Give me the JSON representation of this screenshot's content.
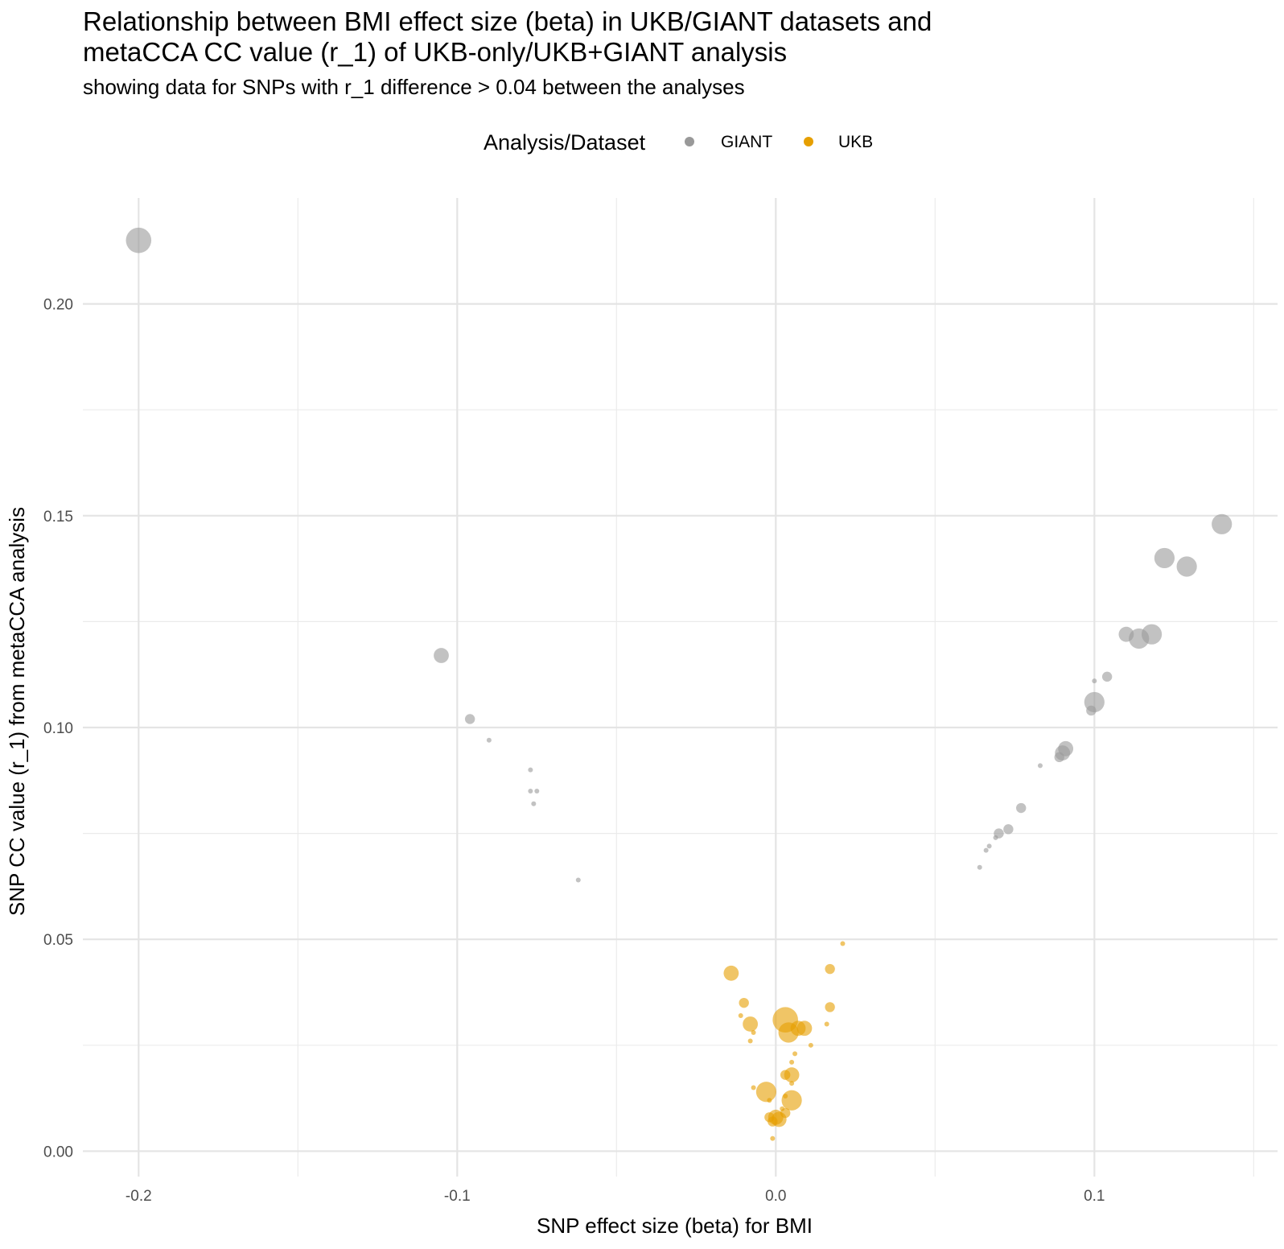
{
  "chart_data": {
    "type": "scatter",
    "title_lines": [
      "Relationship between BMI effect size (beta) in UKB/GIANT datasets and",
      "metaCCA CC value (r_1) of UKB-only/UKB+GIANT analysis"
    ],
    "subtitle": "showing data for SNPs with r_1 difference > 0.04 between the analyses",
    "xlabel": "SNP effect size (beta) for BMI",
    "ylabel": "SNP CC value (r_1) from metaCCA analysis",
    "xlim": [
      -0.2175,
      0.1575
    ],
    "ylim": [
      -0.006,
      0.225
    ],
    "x_ticks": [
      -0.2,
      -0.1,
      0.0,
      0.1
    ],
    "x_tick_labels": [
      "-0.2",
      "-0.1",
      "0.0",
      "0.1"
    ],
    "y_ticks": [
      0.0,
      0.05,
      0.1,
      0.15,
      0.2
    ],
    "y_tick_labels": [
      "0.00",
      "0.05",
      "0.10",
      "0.15",
      "0.20"
    ],
    "x_minor": [
      -0.15,
      -0.05,
      0.05,
      0.15
    ],
    "y_minor": [
      0.025,
      0.075,
      0.125,
      0.175
    ],
    "grid": true,
    "legend_title": "Analysis/Dataset",
    "legend_position": "top",
    "series": [
      {
        "name": "GIANT",
        "color": "#999999",
        "points": [
          {
            "x": -0.2,
            "y": 0.215,
            "s": 5
          },
          {
            "x": -0.105,
            "y": 0.117,
            "s": 3
          },
          {
            "x": -0.096,
            "y": 0.102,
            "s": 2
          },
          {
            "x": -0.09,
            "y": 0.097,
            "s": 1
          },
          {
            "x": -0.077,
            "y": 0.09,
            "s": 1
          },
          {
            "x": -0.077,
            "y": 0.085,
            "s": 1
          },
          {
            "x": -0.075,
            "y": 0.085,
            "s": 1
          },
          {
            "x": -0.076,
            "y": 0.082,
            "s": 1
          },
          {
            "x": -0.062,
            "y": 0.064,
            "s": 1
          },
          {
            "x": 0.14,
            "y": 0.148,
            "s": 4
          },
          {
            "x": 0.122,
            "y": 0.14,
            "s": 4
          },
          {
            "x": 0.129,
            "y": 0.138,
            "s": 4
          },
          {
            "x": 0.11,
            "y": 0.122,
            "s": 3
          },
          {
            "x": 0.114,
            "y": 0.121,
            "s": 4
          },
          {
            "x": 0.118,
            "y": 0.122,
            "s": 4
          },
          {
            "x": 0.104,
            "y": 0.112,
            "s": 2
          },
          {
            "x": 0.1,
            "y": 0.111,
            "s": 1
          },
          {
            "x": 0.1,
            "y": 0.106,
            "s": 4
          },
          {
            "x": 0.099,
            "y": 0.104,
            "s": 2
          },
          {
            "x": 0.091,
            "y": 0.095,
            "s": 3
          },
          {
            "x": 0.09,
            "y": 0.094,
            "s": 3
          },
          {
            "x": 0.089,
            "y": 0.093,
            "s": 2
          },
          {
            "x": 0.083,
            "y": 0.091,
            "s": 1
          },
          {
            "x": 0.077,
            "y": 0.081,
            "s": 2
          },
          {
            "x": 0.073,
            "y": 0.076,
            "s": 2
          },
          {
            "x": 0.07,
            "y": 0.075,
            "s": 2
          },
          {
            "x": 0.069,
            "y": 0.074,
            "s": 1
          },
          {
            "x": 0.067,
            "y": 0.072,
            "s": 1
          },
          {
            "x": 0.066,
            "y": 0.071,
            "s": 1
          },
          {
            "x": 0.064,
            "y": 0.067,
            "s": 1
          }
        ]
      },
      {
        "name": "UKB",
        "color": "#E69F00",
        "points": [
          {
            "x": -0.014,
            "y": 0.042,
            "s": 3
          },
          {
            "x": -0.01,
            "y": 0.035,
            "s": 2
          },
          {
            "x": -0.011,
            "y": 0.032,
            "s": 1
          },
          {
            "x": -0.008,
            "y": 0.03,
            "s": 3
          },
          {
            "x": -0.007,
            "y": 0.028,
            "s": 1
          },
          {
            "x": -0.008,
            "y": 0.026,
            "s": 1
          },
          {
            "x": 0.003,
            "y": 0.031,
            "s": 5
          },
          {
            "x": 0.004,
            "y": 0.028,
            "s": 4
          },
          {
            "x": 0.007,
            "y": 0.029,
            "s": 3
          },
          {
            "x": 0.009,
            "y": 0.029,
            "s": 3
          },
          {
            "x": 0.011,
            "y": 0.025,
            "s": 1
          },
          {
            "x": 0.006,
            "y": 0.023,
            "s": 1
          },
          {
            "x": 0.005,
            "y": 0.021,
            "s": 1
          },
          {
            "x": 0.003,
            "y": 0.018,
            "s": 2
          },
          {
            "x": 0.005,
            "y": 0.018,
            "s": 3
          },
          {
            "x": 0.005,
            "y": 0.016,
            "s": 1
          },
          {
            "x": -0.007,
            "y": 0.015,
            "s": 1
          },
          {
            "x": -0.003,
            "y": 0.014,
            "s": 4
          },
          {
            "x": 0.003,
            "y": 0.013,
            "s": 1
          },
          {
            "x": 0.005,
            "y": 0.012,
            "s": 4
          },
          {
            "x": -0.002,
            "y": 0.012,
            "s": 1
          },
          {
            "x": 0.002,
            "y": 0.01,
            "s": 1
          },
          {
            "x": 0.003,
            "y": 0.009,
            "s": 2
          },
          {
            "x": -0.002,
            "y": 0.008,
            "s": 2
          },
          {
            "x": 0.0,
            "y": 0.008,
            "s": 3
          },
          {
            "x": 0.001,
            "y": 0.0075,
            "s": 3
          },
          {
            "x": -0.001,
            "y": 0.007,
            "s": 2
          },
          {
            "x": -0.001,
            "y": 0.003,
            "s": 1
          },
          {
            "x": 0.017,
            "y": 0.043,
            "s": 2
          },
          {
            "x": 0.017,
            "y": 0.034,
            "s": 2
          },
          {
            "x": 0.016,
            "y": 0.03,
            "s": 1
          },
          {
            "x": 0.021,
            "y": 0.049,
            "s": 1
          }
        ]
      }
    ]
  }
}
